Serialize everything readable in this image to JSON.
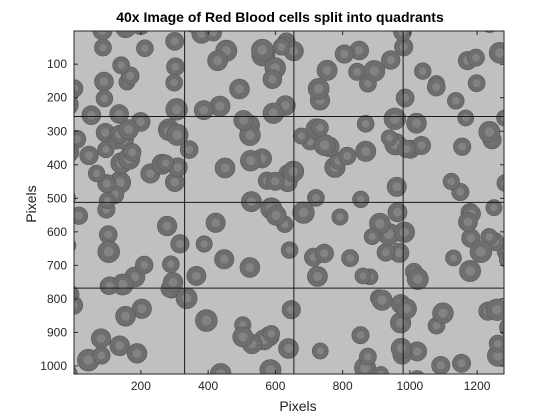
{
  "title": "40x Image of Red Blood cells split into quadrants",
  "xlabel": "Pixels",
  "ylabel": "Pixels",
  "image": {
    "description": "grayscale micrograph of red blood cells",
    "background_color": "#c0c0c0",
    "cell_fill": "#6e6e6e",
    "cell_center": "#8c8c8c",
    "grid_line_color": "#1a1a1a"
  },
  "axes": {
    "x_range": [
      1,
      1280
    ],
    "y_range": [
      1,
      1024
    ],
    "x_ticks": [
      200,
      400,
      600,
      800,
      1000,
      1200
    ],
    "y_ticks": [
      100,
      200,
      300,
      400,
      500,
      600,
      700,
      800,
      900,
      1000
    ],
    "x_tick_labels": [
      "200",
      "400",
      "600",
      "800",
      "1000",
      "1200"
    ],
    "y_tick_labels": [
      "100",
      "200",
      "300",
      "400",
      "500",
      "600",
      "700",
      "800",
      "900",
      "1000"
    ],
    "grid_x": [
      330,
      655,
      980
    ],
    "grid_y": [
      256,
      512,
      768
    ]
  }
}
